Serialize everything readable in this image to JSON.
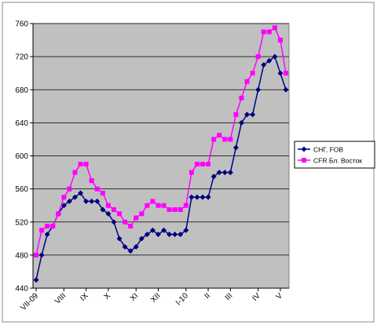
{
  "chart_data": {
    "type": "line",
    "categories": [
      "VII-09",
      null,
      null,
      null,
      null,
      "VIII",
      null,
      null,
      null,
      "IX",
      null,
      null,
      null,
      "X",
      null,
      null,
      null,
      null,
      "XI",
      null,
      null,
      null,
      "XII",
      null,
      null,
      null,
      null,
      "I-10",
      null,
      null,
      null,
      "II",
      null,
      null,
      null,
      "III",
      null,
      null,
      null,
      null,
      "IV",
      null,
      null,
      null,
      "V",
      null
    ],
    "series": [
      {
        "name": "СНГ, FOB",
        "color": "#000080",
        "marker": "diamond",
        "values": [
          450,
          480,
          505,
          515,
          530,
          540,
          545,
          550,
          555,
          545,
          545,
          545,
          535,
          530,
          520,
          500,
          490,
          485,
          490,
          500,
          505,
          510,
          505,
          510,
          505,
          505,
          505,
          510,
          550,
          550,
          550,
          550,
          575,
          580,
          580,
          580,
          610,
          640,
          650,
          650,
          680,
          710,
          715,
          720,
          700,
          680
        ]
      },
      {
        "name": "CFR Бл. Восток",
        "color": "#ff00ff",
        "marker": "square",
        "values": [
          480,
          510,
          515,
          515,
          530,
          550,
          560,
          580,
          590,
          590,
          570,
          560,
          555,
          540,
          535,
          530,
          520,
          515,
          525,
          530,
          540,
          545,
          540,
          540,
          535,
          535,
          535,
          540,
          580,
          590,
          590,
          590,
          620,
          625,
          620,
          620,
          650,
          670,
          690,
          700,
          720,
          750,
          750,
          755,
          740,
          700
        ]
      }
    ],
    "ylim": [
      440,
      760
    ],
    "yticks": [
      440,
      480,
      520,
      560,
      600,
      640,
      680,
      720,
      760
    ],
    "grid": true,
    "legend": "right",
    "plot_background": "#c0c0c0"
  }
}
